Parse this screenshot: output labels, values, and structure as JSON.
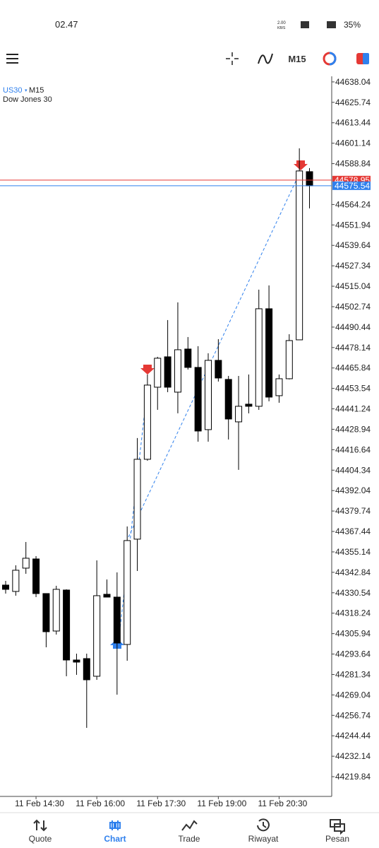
{
  "status_bar": {
    "time": "02.47",
    "speed": "2.00",
    "speed_unit": "KB/S",
    "battery": "35%"
  },
  "toolbar": {
    "timeframe": "M15"
  },
  "chart_data": {
    "type": "candlestick",
    "symbol": "US30",
    "timeframe": "M15",
    "description": "Dow Jones 30",
    "categories": [
      null,
      null,
      null,
      "11 Feb 14:30",
      null,
      null,
      null,
      null,
      null,
      "11 Feb 16:00",
      null,
      null,
      null,
      null,
      null,
      "11 Feb 17:30",
      null,
      null,
      null,
      null,
      null,
      "11 Feb 19:00",
      null,
      null,
      null,
      null,
      null,
      "11 Feb 20:30",
      null,
      null,
      null
    ],
    "open": [
      44335.16,
      44331.33,
      44345.36,
      44350.89,
      44330.05,
      44307.5,
      44332.18,
      44290.06,
      44290.91,
      44280.28,
      44329.62,
      44327.92,
      44299.42,
      44362.81,
      44410.88,
      44454.27,
      44472.56,
      44451.29,
      44477.24,
      44466.18,
      44428.74,
      44470.43,
      44458.95,
      44433.42,
      44444.06,
      44442.78,
      44501.49,
      44449.16,
      44459.37,
      44482.77,
      44584.01
    ],
    "high": [
      44337.71,
      44347.07,
      44361.1,
      44352.6,
      44330.05,
      44334.73,
      44332.6,
      44293.89,
      44293.89,
      44350.04,
      44338.56,
      44342.81,
      44370.46,
      44423.64,
      44461.92,
      44472.56,
      44494.68,
      44505.32,
      44484.47,
      44478.94,
      44474.69,
      44483.19,
      44461.07,
      44461.07,
      44461.92,
      44512.97,
      44515.52,
      44461.92,
      44486.17,
      44598.05,
      44586.14
    ],
    "low": [
      44330.05,
      44328.77,
      44341.96,
      44327.92,
      44297.72,
      44305.38,
      44280.28,
      44281.13,
      44249.22,
      44278.15,
      44327.92,
      44269.22,
      44289.64,
      44343.66,
      44410.03,
      44440.65,
      44451.29,
      44438.53,
      44464.9,
      44421.51,
      44421.51,
      44457.67,
      44422.79,
      44404.5,
      44438.53,
      44440.65,
      44445.76,
      44444.91,
      44458.95,
      44482.77,
      44561.89
    ],
    "close": [
      44332.6,
      44344.09,
      44351.32,
      44330.05,
      44307.08,
      44332.6,
      44290.06,
      44288.79,
      44278.15,
      44328.77,
      44327.92,
      44300.27,
      44361.96,
      44410.88,
      44455.54,
      44471.71,
      44454.27,
      44476.81,
      44466.18,
      44427.89,
      44470.43,
      44459.8,
      44435.12,
      44442.78,
      44442.78,
      44501.49,
      44448.31,
      44459.37,
      44482.34,
      44584.44,
      44575.51
    ],
    "ylim": [
      44208.8,
      44641.4
    ],
    "yticks": [
      44638.04,
      44625.74,
      44613.44,
      44601.14,
      44588.84,
      44564.24,
      44551.94,
      44539.64,
      44527.34,
      44515.04,
      44502.74,
      44490.44,
      44478.14,
      44465.84,
      44453.54,
      44441.24,
      44428.94,
      44416.64,
      44404.34,
      44392.04,
      44379.74,
      44367.44,
      44355.14,
      44342.84,
      44330.54,
      44318.24,
      44305.94,
      44293.64,
      44281.34,
      44269.04,
      44256.74,
      44244.44,
      44232.14,
      44219.84
    ],
    "bull_color": "#ffffff",
    "bear_color": "#000000",
    "price_lines": [
      {
        "value": 44578.95,
        "color": "#e53935"
      },
      {
        "value": 44575.54,
        "color": "#2f80ed"
      }
    ]
  },
  "nav": {
    "items": [
      "Quote",
      "Chart",
      "Trade",
      "Riwayat",
      "Pesan"
    ],
    "active": 1
  }
}
